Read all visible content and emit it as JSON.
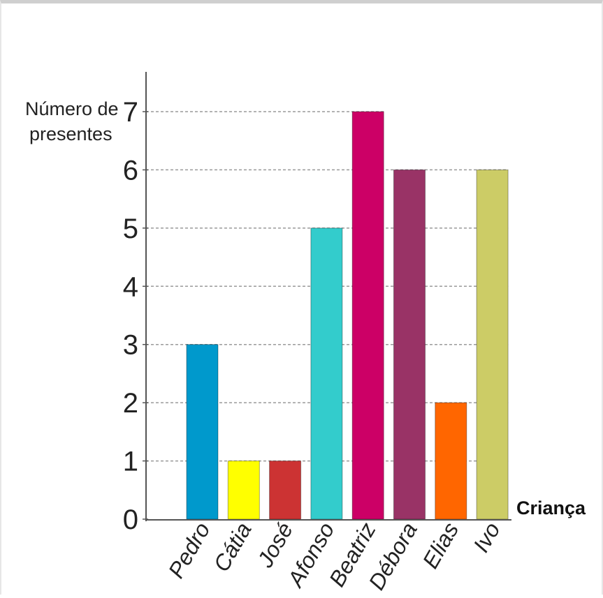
{
  "chart_data": {
    "type": "bar",
    "ylabel_lines": [
      "Número de",
      "presentes"
    ],
    "xlabel": "Criança",
    "categories": [
      "Pedro",
      "Cátia",
      "José",
      "Afonso",
      "Beatriz",
      "Débora",
      "Elias",
      "Ivo"
    ],
    "values": [
      3,
      1,
      1,
      5,
      7,
      6,
      2,
      6
    ],
    "colors": [
      "#0099cc",
      "#ffff00",
      "#cc3333",
      "#33cccc",
      "#cc0066",
      "#993366",
      "#ff6600",
      "#cccc66"
    ],
    "yticks": [
      0,
      1,
      2,
      3,
      4,
      5,
      6,
      7
    ],
    "ylim": [
      0,
      7
    ],
    "grid": "dashed horizontal at value levels"
  }
}
